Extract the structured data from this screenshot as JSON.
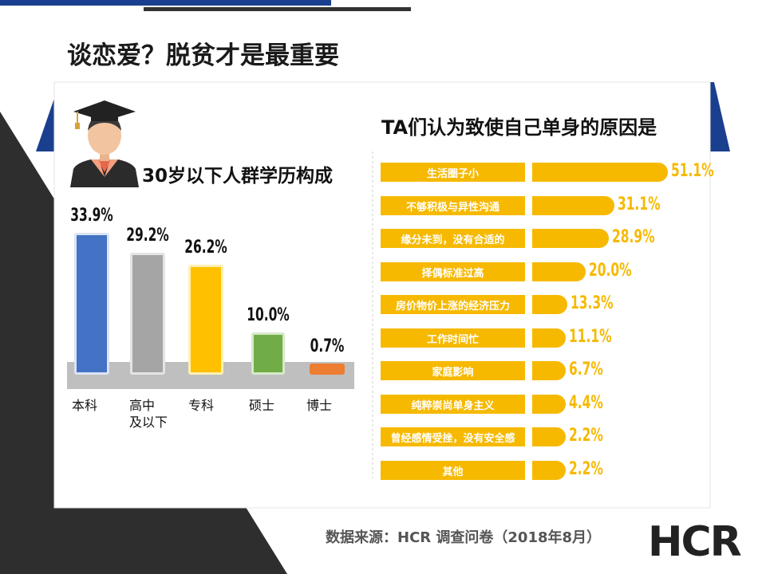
{
  "page_title": "谈恋爱？脱贫才是最重要",
  "source": "数据来源：HCR 调查问卷（2018年8月）",
  "logo_text": "HCR",
  "colors": {
    "accent_blue": "#1b3f8f",
    "dark_gray": "#2e2e2e",
    "yellow": "#f6b900"
  },
  "icon": "graduate-avatar-icon",
  "chart_data": [
    {
      "type": "bar",
      "title": "30岁以下人群学历构成",
      "categories": [
        "本科",
        "高中\n及以下",
        "专科",
        "硕士",
        "博士"
      ],
      "values": [
        33.9,
        29.2,
        26.2,
        10.0,
        0.7
      ],
      "value_labels": [
        "33.9%",
        "29.2%",
        "26.2%",
        "10.0%",
        "0.7%"
      ],
      "colors": [
        "#4472c4",
        "#a5a5a5",
        "#ffc000",
        "#70ad47",
        "#ed7d31"
      ],
      "xlabel": "",
      "ylabel": "",
      "ylim": [
        0,
        40
      ]
    },
    {
      "type": "bar",
      "orientation": "horizontal",
      "title": "TA们认为致使自己单身的原因是",
      "categories": [
        "生活圈子小",
        "不够积极与异性沟通",
        "缘分未到，没有合适的",
        "择偶标准过高",
        "房价物价上涨的经济压力",
        "工作时间忙",
        "家庭影响",
        "纯粹崇尚单身主义",
        "曾经感情受挫，没有安全感",
        "其他"
      ],
      "values": [
        51.1,
        31.1,
        28.9,
        20.0,
        13.3,
        11.1,
        6.7,
        4.4,
        2.2,
        2.2
      ],
      "value_labels": [
        "51.1%",
        "31.1%",
        "28.9%",
        "20.0%",
        "13.3%",
        "11.1%",
        "6.7%",
        "4.4%",
        "2.2%",
        "2.2%"
      ],
      "xlim": [
        0,
        55
      ]
    }
  ]
}
